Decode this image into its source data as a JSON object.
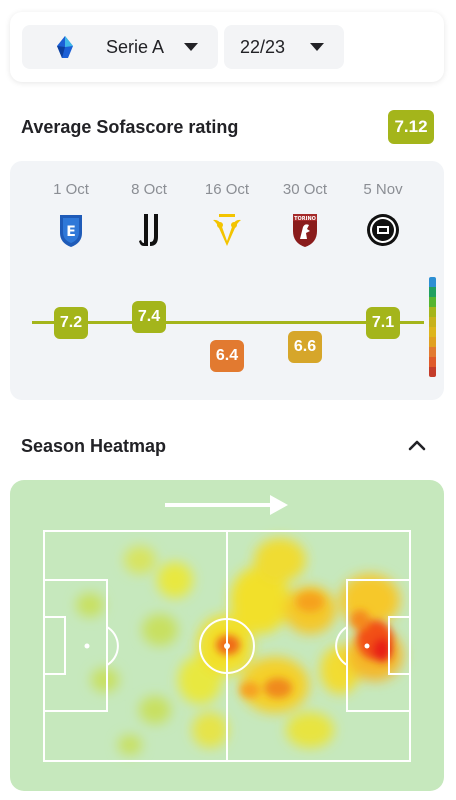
{
  "filters": {
    "league": "Serie A",
    "league_icon": "serie-a-logo-icon",
    "season": "22/23"
  },
  "rating_section": {
    "title": "Average Sofascore rating",
    "average": "7.12",
    "matches": [
      {
        "date": "1 Oct",
        "team_icon": "empoli-logo-icon",
        "rating": "7.2",
        "color": "#a4b51b"
      },
      {
        "date": "8 Oct",
        "team_icon": "juventus-logo-icon",
        "rating": "7.4",
        "color": "#a4b51b"
      },
      {
        "date": "16 Oct",
        "team_icon": "verona-logo-icon",
        "rating": "6.4",
        "color": "#e27a30"
      },
      {
        "date": "30 Oct",
        "team_icon": "torino-logo-icon",
        "rating": "6.6",
        "color": "#d6a62a"
      },
      {
        "date": "5 Nov",
        "team_icon": "spezia-logo-icon",
        "rating": "7.1",
        "color": "#a4b51b"
      }
    ],
    "scale_colors": [
      "#2d8fd3",
      "#20a060",
      "#55b530",
      "#a4b51b",
      "#c7b21c",
      "#ddb51c",
      "#e0a020",
      "#e27a30",
      "#df5a2a",
      "#c43c2a"
    ]
  },
  "heatmap_section": {
    "title": "Season Heatmap",
    "direction_icon": "arrow-right-icon",
    "collapse_icon": "chevron-up-icon"
  }
}
